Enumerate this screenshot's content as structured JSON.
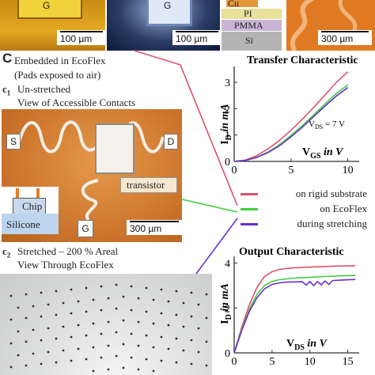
{
  "top_panels": {
    "scale1": "100 µm",
    "scale2": "100 µm",
    "scale3": "300 µm",
    "pad_letter1": "G",
    "pad_letter2": "G",
    "layer_cu": "Cu",
    "layer_pi": "PI",
    "layer_pmma": "PMMA",
    "layer_si": "Si"
  },
  "section": {
    "letter": "C",
    "line1": "Embedded in EcoFlex",
    "line2": "(Pads exposed to air)",
    "c1_label": "c",
    "c1_sub": "1",
    "c1_line1": "Un-stretched",
    "c1_line2": "View of Accessible Contacts",
    "c2_label": "c",
    "c2_sub": "2",
    "c2_line1": "Stretched – 200 % Areal",
    "c2_line2": "View Through EcoFlex"
  },
  "photo_c1": {
    "pad_s": "S",
    "pad_d": "D",
    "pad_g": "G",
    "transistor": "transistor",
    "chip": "Chip",
    "silicone": "Silicone",
    "scale": "300 µm"
  },
  "colors": {
    "rigid": "#e0506a",
    "ecoflex": "#3fce3f",
    "stretching": "#6a2fd0"
  },
  "legend": [
    {
      "label": "on rigid substrate",
      "color": "#e0506a"
    },
    {
      "label": "on EcoFlex",
      "color": "#3fce3f"
    },
    {
      "label": "during stretching",
      "color": "#6a2fd0"
    }
  ],
  "chart_data": [
    {
      "type": "line",
      "title": "Transfer Characteristic",
      "ylabel_main": "I",
      "ylabel_sub": "D",
      "ylabel_rest": " in mA",
      "xlabel_main": "V",
      "xlabel_sub": "GS",
      "xlabel_rest": " in V",
      "annotation": "V_DS = 7 V",
      "annotation_main": "V",
      "annotation_sub": "DS",
      "annotation_rest": " = 7 V",
      "xlim": [
        0,
        11
      ],
      "ylim": [
        0,
        3.6
      ],
      "x_ticks": [
        0,
        5,
        10
      ],
      "y_ticks": [
        0,
        1,
        2,
        3
      ],
      "x_tick_labels": [
        "0",
        "5",
        "10"
      ],
      "y_tick_labels": [
        "0",
        "1",
        "2",
        "3"
      ],
      "series": [
        {
          "name": "on rigid substrate",
          "x": [
            0,
            1,
            2,
            3,
            4,
            5,
            6,
            7,
            8,
            9,
            10
          ],
          "values": [
            0,
            0.05,
            0.22,
            0.48,
            0.8,
            1.18,
            1.6,
            2.05,
            2.52,
            3.0,
            3.4
          ]
        },
        {
          "name": "on EcoFlex",
          "x": [
            0,
            1,
            2,
            3,
            4,
            5,
            6,
            7,
            8,
            9,
            10
          ],
          "values": [
            0,
            0.04,
            0.16,
            0.36,
            0.64,
            0.98,
            1.36,
            1.76,
            2.18,
            2.58,
            2.9
          ]
        },
        {
          "name": "during stretching",
          "x": [
            0,
            1,
            2,
            3,
            4,
            5,
            6,
            7,
            8,
            9,
            10
          ],
          "values": [
            0,
            0.04,
            0.15,
            0.34,
            0.6,
            0.93,
            1.3,
            1.7,
            2.1,
            2.48,
            2.8
          ]
        }
      ]
    },
    {
      "type": "line",
      "title": "Output Characteristic",
      "ylabel_main": "I",
      "ylabel_sub": "D",
      "ylabel_rest": " in mA",
      "xlabel_main": "V",
      "xlabel_sub": "DS",
      "xlabel_rest": " in V",
      "xlim": [
        0,
        16.5
      ],
      "ylim": [
        0,
        4.3
      ],
      "x_ticks": [
        0,
        5,
        10,
        15
      ],
      "y_ticks": [
        0,
        2,
        4
      ],
      "x_tick_labels": [
        "0",
        "5",
        "10",
        "15"
      ],
      "y_tick_labels": [
        "0",
        "2",
        "4"
      ],
      "series": [
        {
          "name": "on rigid substrate",
          "x": [
            0,
            1,
            2,
            3,
            4,
            5,
            6,
            7,
            8,
            10,
            12,
            14,
            16
          ],
          "values": [
            0,
            1.15,
            2.15,
            2.9,
            3.4,
            3.62,
            3.72,
            3.76,
            3.79,
            3.82,
            3.85,
            3.87,
            3.88
          ]
        },
        {
          "name": "on EcoFlex",
          "x": [
            0,
            1,
            2,
            3,
            4,
            5,
            6,
            7,
            8,
            10,
            12,
            14,
            16
          ],
          "values": [
            0,
            1.05,
            1.95,
            2.6,
            3.0,
            3.18,
            3.26,
            3.3,
            3.33,
            3.37,
            3.4,
            3.43,
            3.45
          ]
        },
        {
          "name": "during stretching",
          "x": [
            0,
            1,
            2,
            3,
            4,
            5,
            6,
            7,
            8,
            9,
            9.5,
            10,
            10.5,
            11,
            11.5,
            12,
            12.5,
            13,
            14,
            16
          ],
          "values": [
            0,
            1.0,
            1.85,
            2.45,
            2.85,
            3.05,
            3.12,
            3.15,
            3.16,
            3.17,
            3.02,
            3.18,
            3.0,
            3.18,
            3.03,
            3.2,
            3.05,
            3.22,
            3.24,
            3.27
          ]
        }
      ]
    }
  ]
}
